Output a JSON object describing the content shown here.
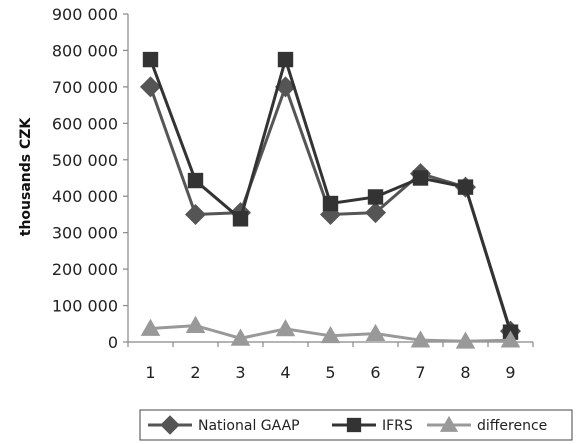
{
  "chart_data": {
    "type": "line",
    "title": "",
    "xlabel": "",
    "ylabel": "thousands CZK",
    "categories": [
      "1",
      "2",
      "3",
      "4",
      "5",
      "6",
      "7",
      "8",
      "9"
    ],
    "y_ticks": [
      "0",
      "100 000",
      "200 000",
      "300 000",
      "400 000",
      "500 000",
      "600 000",
      "700 000",
      "800 000",
      "900 000"
    ],
    "ylim": [
      0,
      900000
    ],
    "grid": false,
    "legend_position": "bottom",
    "series": [
      {
        "name": "National GAAP",
        "marker": "diamond",
        "color": "#555555",
        "values": [
          700000,
          350000,
          355000,
          700000,
          350000,
          355000,
          462000,
          425000,
          30000
        ]
      },
      {
        "name": "IFRS",
        "marker": "square",
        "color": "#333333",
        "values": [
          775000,
          443000,
          338000,
          775000,
          380000,
          398000,
          450000,
          425000,
          27000
        ]
      },
      {
        "name": "difference",
        "marker": "triangle",
        "color": "#999999",
        "values": [
          37000,
          45000,
          10000,
          36000,
          17000,
          23000,
          5000,
          2000,
          5000
        ]
      }
    ]
  }
}
